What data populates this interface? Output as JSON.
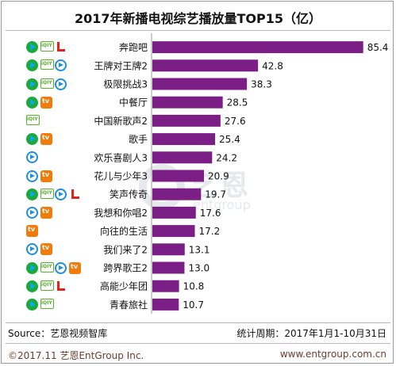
{
  "header": {
    "title": "2017年新播电视综艺播放量TOP15（亿）"
  },
  "footer": {
    "source": "Source：艺恩视频智库",
    "period": "统计周期：2017年1月1-10月31日",
    "copyright": "©2017.11 艺恩EntGroup Inc.",
    "website": "www.entgroup.com.cn"
  },
  "watermark": {
    "logo_text": "艺恩",
    "sub_text": "entgroup"
  },
  "colors": {
    "bar": "#7b1f87",
    "tencent": "#1aaa3a",
    "iqiyi": "#56b22a",
    "youku": "#1e8ee0",
    "mango": "#f07c0c",
    "letv": "#e2231a"
  },
  "chart_data": {
    "type": "bar",
    "orientation": "horizontal",
    "title": "2017年新播电视综艺播放量TOP15（亿）",
    "unit": "亿",
    "categories": [
      "奔跑吧",
      "王牌对王牌2",
      "极限挑战3",
      "中餐厅",
      "中国新歌声2",
      "歌手",
      "欢乐喜剧人3",
      "花儿与少年3",
      "笑声传奇",
      "我想和你唱2",
      "向往的生活",
      "我们来了2",
      "跨界歌王2",
      "高能少年团",
      "青春旅社"
    ],
    "values": [
      85.4,
      42.8,
      38.3,
      28.5,
      27.6,
      25.4,
      24.2,
      20.9,
      19.7,
      17.6,
      17.2,
      13.1,
      13.0,
      10.8,
      10.7
    ],
    "platforms": [
      [
        "tencent-icon",
        "iqiyi-icon",
        "letv-icon"
      ],
      [
        "tencent-icon",
        "iqiyi-icon",
        "youku-icon"
      ],
      [
        "tencent-icon",
        "iqiyi-icon",
        "youku-icon"
      ],
      [
        "tencent-icon",
        "mango-icon"
      ],
      [
        "iqiyi-icon"
      ],
      [
        "tencent-icon",
        "mango-icon"
      ],
      [
        "youku-icon"
      ],
      [
        "youku-icon",
        "mango-icon"
      ],
      [
        "tencent-icon",
        "iqiyi-icon",
        "youku-icon",
        "letv-icon"
      ],
      [
        "youku-icon",
        "mango-icon"
      ],
      [
        "mango-icon"
      ],
      [
        "youku-icon",
        "mango-icon"
      ],
      [
        "tencent-icon",
        "iqiyi-icon",
        "youku-icon",
        "mango-icon"
      ],
      [
        "tencent-icon",
        "iqiyi-icon",
        "letv-icon"
      ],
      [
        "tencent-icon",
        "iqiyi-icon"
      ]
    ],
    "xlim": [
      0,
      90
    ],
    "grid": false,
    "legend": "none"
  }
}
